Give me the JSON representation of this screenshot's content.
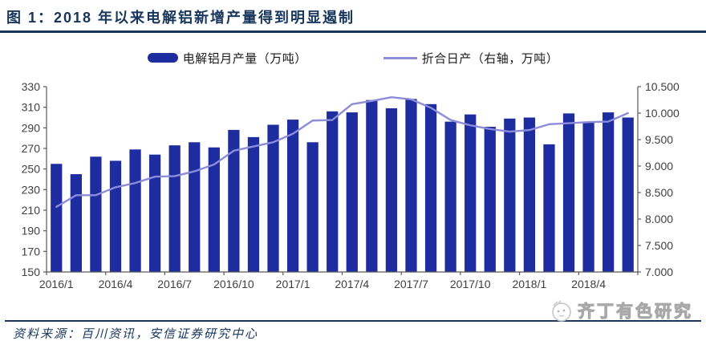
{
  "header": {
    "title": "图 1：2018 年以来电解铝新增产量得到明显遏制"
  },
  "legend": {
    "items": [
      {
        "label": "电解铝月产量（万吨）",
        "marker": "bar-swatch"
      },
      {
        "label": "折合日产（右轴，万吨）",
        "marker": "line-swatch"
      }
    ]
  },
  "footer": {
    "source": "资料来源：百川资讯，安信证券研究中心",
    "watermark": "齐丁有色研究"
  },
  "colors": {
    "bar": "#1d2c9e",
    "line": "#8c8cdb",
    "navy": "#16365c",
    "rule": "#17375e",
    "axis": "#595959",
    "axis_text": "#3f3f3f"
  },
  "chart_data": {
    "type": "bar",
    "title": "",
    "xlabel": "",
    "ylabel": "",
    "grid": false,
    "legend_position": "top",
    "categories": [
      "2016/1",
      "2016/2",
      "2016/3",
      "2016/4",
      "2016/5",
      "2016/6",
      "2016/7",
      "2016/8",
      "2016/9",
      "2016/10",
      "2016/11",
      "2016/12",
      "2017/1",
      "2017/2",
      "2017/3",
      "2017/4",
      "2017/5",
      "2017/6",
      "2017/7",
      "2017/8",
      "2017/9",
      "2017/10",
      "2017/11",
      "2017/12",
      "2018/1",
      "2018/2",
      "2018/3",
      "2018/4",
      "2018/5",
      "2018/6"
    ],
    "x_tick_labels": [
      "2016/1",
      "2016/4",
      "2016/7",
      "2016/10",
      "2017/1",
      "2017/4",
      "2017/7",
      "2017/10",
      "2018/1",
      "2018/4"
    ],
    "series": [
      {
        "name": "电解铝月产量（万吨）",
        "type": "bar",
        "axis": "left",
        "values": [
          255,
          245,
          262,
          258,
          269,
          264,
          273,
          276,
          271,
          288,
          281,
          293,
          298,
          276,
          306,
          305,
          317,
          309,
          318,
          313,
          296,
          303,
          291,
          299,
          300,
          274,
          304,
          295,
          305,
          300
        ]
      },
      {
        "name": "折合日产（右轴，万吨）",
        "type": "line",
        "axis": "right",
        "values": [
          8.23,
          8.45,
          8.45,
          8.6,
          8.68,
          8.8,
          8.81,
          8.9,
          9.03,
          9.29,
          9.37,
          9.45,
          9.61,
          9.86,
          9.87,
          10.17,
          10.23,
          10.3,
          10.26,
          10.1,
          9.87,
          9.77,
          9.7,
          9.65,
          9.68,
          9.79,
          9.81,
          9.83,
          9.84,
          10.0
        ]
      }
    ],
    "left_axis": {
      "min": 150,
      "max": 330,
      "tick_step": 20,
      "tick_labels": [
        "150",
        "170",
        "190",
        "210",
        "230",
        "250",
        "270",
        "290",
        "310",
        "330"
      ]
    },
    "right_axis": {
      "min": 7.0,
      "max": 10.5,
      "tick_step": 0.5,
      "tick_labels": [
        "7.000",
        "7.500",
        "8.000",
        "8.500",
        "9.000",
        "9.500",
        "10.000",
        "10.500"
      ]
    }
  }
}
